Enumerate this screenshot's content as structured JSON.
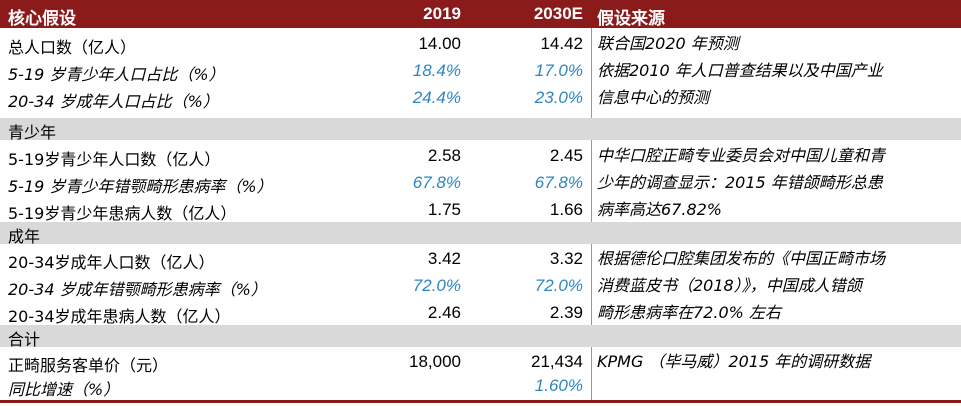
{
  "header": {
    "col1": "核心假设",
    "col2": "2019",
    "col3": "2030E",
    "col4": "假设来源"
  },
  "rows_top": [
    {
      "label": "总人口数（亿人）",
      "v2019": "14.00",
      "v2030": "14.42",
      "italic": false,
      "blue": false
    },
    {
      "label": "5-19 岁青少年人口占比（%）",
      "v2019": "18.4%",
      "v2030": "17.0%",
      "italic": true,
      "blue": true
    },
    {
      "label": "20-34 岁成年人口占比（%）",
      "v2019": "24.4%",
      "v2030": "23.0%",
      "italic": true,
      "blue": true
    }
  ],
  "source_top": [
    "联合国2020 年预测",
    "依据2010 年人口普查结果以及中国产业",
    "信息中心的预测"
  ],
  "section_youth": "青少年",
  "rows_youth": [
    {
      "label": "5-19岁青少年人口数（亿人）",
      "v2019": "2.58",
      "v2030": "2.45"
    },
    {
      "label": "5-19 岁青少年错颚畸形患病率（%）",
      "v2019": "67.8%",
      "v2030": "67.8%"
    },
    {
      "label": "5-19岁青少年患病人数（亿人）",
      "v2019": "1.75",
      "v2030": "1.66"
    }
  ],
  "source_youth": [
    "中华口腔正畸专业委员会对中国儿童和青",
    "少年的调查显示：2015 年错颌畸形总患",
    "病率高达67.82%"
  ],
  "section_adult": "成年",
  "rows_adult": [
    {
      "label": "20-34岁成年人口数（亿人）",
      "v2019": "3.42",
      "v2030": "3.32"
    },
    {
      "label": "20-34 岁成年错颚畸形患病率（%）",
      "v2019": "72.0%",
      "v2030": "72.0%"
    },
    {
      "label": "20-34岁成年患病人数（亿人）",
      "v2019": "2.46",
      "v2030": "2.39"
    }
  ],
  "source_adult": [
    "根据德伦口腔集团发布的《中国正畸市场",
    "消费蓝皮书（2018）》，中国成人错颌",
    "畸形患病率在72.0% 左右"
  ],
  "section_total": "合计",
  "rows_total": [
    {
      "label": "正畸服务客单价（元）",
      "v2019": "18,000",
      "v2030": "21,434"
    },
    {
      "label": "同比增速（%）",
      "v2019": "",
      "v2030": "1.60%"
    }
  ],
  "source_total": "KPMG （毕马威）2015 年的调研数据",
  "colors": {
    "header_bg": "#8b1a1a",
    "section_bg": "#d9d9d9",
    "blue_text": "#2e86c1"
  }
}
